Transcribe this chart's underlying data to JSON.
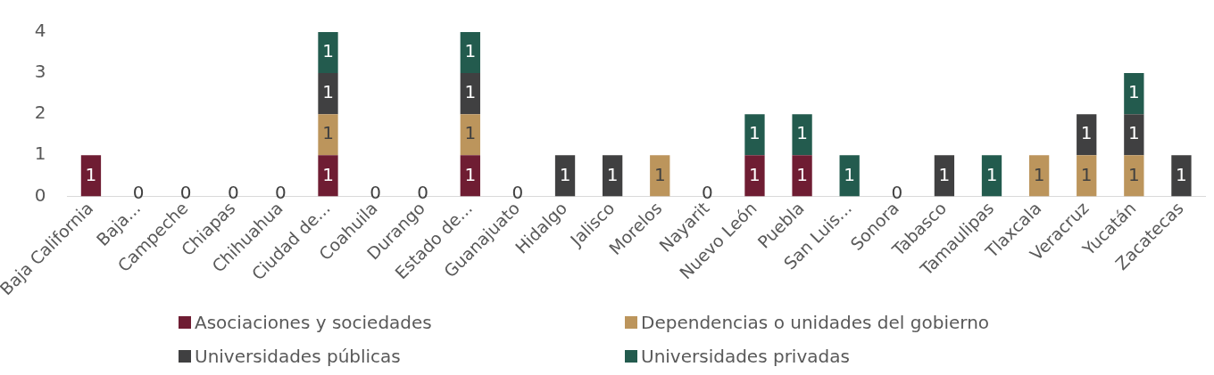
{
  "chart_data": {
    "type": "bar",
    "stacked": true,
    "categories": [
      "Baja California",
      "Baja...",
      "Campeche",
      "Chiapas",
      "Chihuahua",
      "Ciudad de...",
      "Coahuila",
      "Durango",
      "Estado de...",
      "Guanajuato",
      "Hidalgo",
      "Jalisco",
      "Morelos",
      "Nayarit",
      "Nuevo León",
      "Puebla",
      "San Luis...",
      "Sonora",
      "Tabasco",
      "Tamaulipas",
      "Tlaxcala",
      "Veracruz",
      "Yucatán",
      "Zacatecas"
    ],
    "series": [
      {
        "name": "Asociaciones y sociedades",
        "color": "#6f1d33",
        "values": [
          1,
          0,
          0,
          0,
          0,
          1,
          0,
          0,
          1,
          0,
          null,
          null,
          null,
          0,
          1,
          1,
          null,
          0,
          null,
          null,
          null,
          null,
          null,
          null
        ]
      },
      {
        "name": "Dependencias o unidades del gobierno",
        "color": "#bc955c",
        "values": [
          null,
          null,
          null,
          null,
          null,
          1,
          null,
          null,
          1,
          null,
          null,
          null,
          1,
          null,
          null,
          null,
          null,
          null,
          null,
          null,
          1,
          1,
          1,
          null
        ]
      },
      {
        "name": "Universidades públicas",
        "color": "#404041",
        "values": [
          null,
          null,
          null,
          null,
          null,
          1,
          null,
          null,
          1,
          null,
          1,
          1,
          null,
          null,
          null,
          null,
          null,
          null,
          1,
          null,
          null,
          1,
          1,
          1
        ]
      },
      {
        "name": "Universidades privadas",
        "color": "#235b4e",
        "values": [
          null,
          null,
          null,
          null,
          null,
          1,
          null,
          null,
          1,
          null,
          null,
          null,
          null,
          null,
          1,
          1,
          1,
          null,
          null,
          1,
          null,
          null,
          1,
          null
        ]
      }
    ],
    "ylim": [
      0,
      4
    ],
    "yticks": [
      0,
      1,
      2,
      3,
      4
    ],
    "grid": false,
    "legend": "bottom",
    "data_labels": true
  }
}
